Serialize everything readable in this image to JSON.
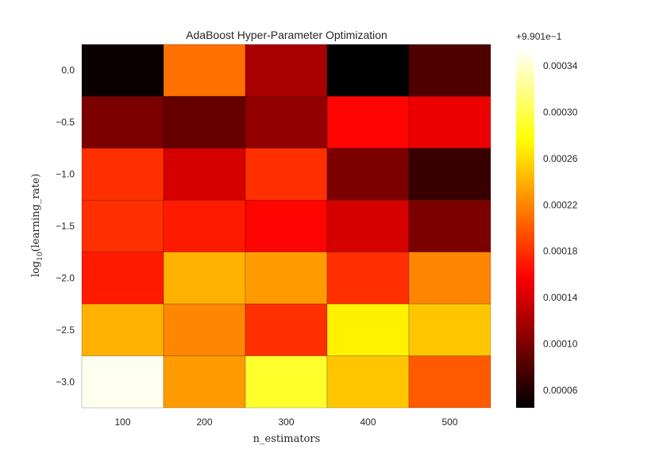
{
  "chart_data": {
    "type": "heatmap",
    "title": "AdaBoost Hyper-Parameter Optimization",
    "xlabel": "n_estimators",
    "ylabel": {
      "prefix": "log",
      "sub": "10",
      "suffix": "(learning_rate)"
    },
    "x_categories": [
      "100",
      "200",
      "300",
      "400",
      "500"
    ],
    "y_categories": [
      "0.0",
      "−0.5",
      "−1.0",
      "−1.5",
      "−2.0",
      "−2.5",
      "−3.0"
    ],
    "values_offset_units": [
      [
        5e-05,
        0.00021,
        0.00012,
        4e-05,
        8e-05
      ],
      [
        0.0001,
        9e-05,
        0.00011,
        0.00016,
        0.00015
      ],
      [
        0.00018,
        0.00014,
        0.00018,
        0.0001,
        7e-05
      ],
      [
        0.00018,
        0.00017,
        0.00016,
        0.00014,
        0.0001
      ],
      [
        0.00017,
        0.00024,
        0.00023,
        0.00018,
        0.00022
      ],
      [
        0.00024,
        0.00022,
        0.00018,
        0.00027,
        0.00025
      ],
      [
        0.00035,
        0.00023,
        0.00029,
        0.00025,
        0.0002
      ]
    ],
    "value_offset_label": "+9.901e−1",
    "colormap": "hot",
    "colorbar": {
      "range": [
        4.5e-05,
        0.000355
      ],
      "ticks": [
        6e-05,
        0.0001,
        0.00014,
        0.00018,
        0.00022,
        0.00026,
        0.0003,
        0.00034
      ],
      "tick_labels": [
        "0.00006",
        "0.00010",
        "0.00014",
        "0.00018",
        "0.00022",
        "0.00026",
        "0.00030",
        "0.00034"
      ]
    },
    "grid": false,
    "legend": "colorbar-right"
  }
}
